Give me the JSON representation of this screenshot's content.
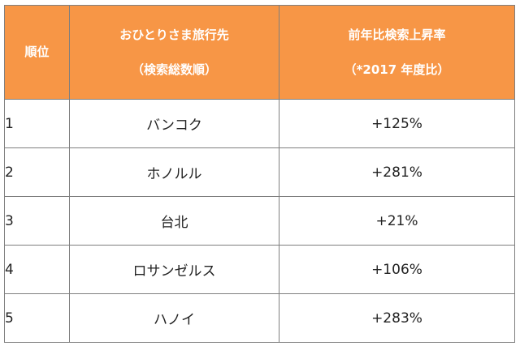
{
  "table": {
    "headers": {
      "rank": "順位",
      "destination": [
        "おひとりさま旅行先",
        "（検索総数順）"
      ],
      "growth": [
        "前年比検索上昇率",
        "（*2017 年度比）"
      ]
    },
    "rows": [
      {
        "rank": "1",
        "destination": "バンコク",
        "growth": "+125%"
      },
      {
        "rank": "2",
        "destination": "ホノルル",
        "growth": "+281%"
      },
      {
        "rank": "3",
        "destination": "台北",
        "growth": "+21%"
      },
      {
        "rank": "4",
        "destination": "ロサンゼルス",
        "growth": "+106%"
      },
      {
        "rank": "5",
        "destination": "ハノイ",
        "growth": "+283%"
      }
    ],
    "colors": {
      "header_bg": "#f79646",
      "header_text": "#ffffff",
      "border": "#7f7f7f"
    }
  }
}
